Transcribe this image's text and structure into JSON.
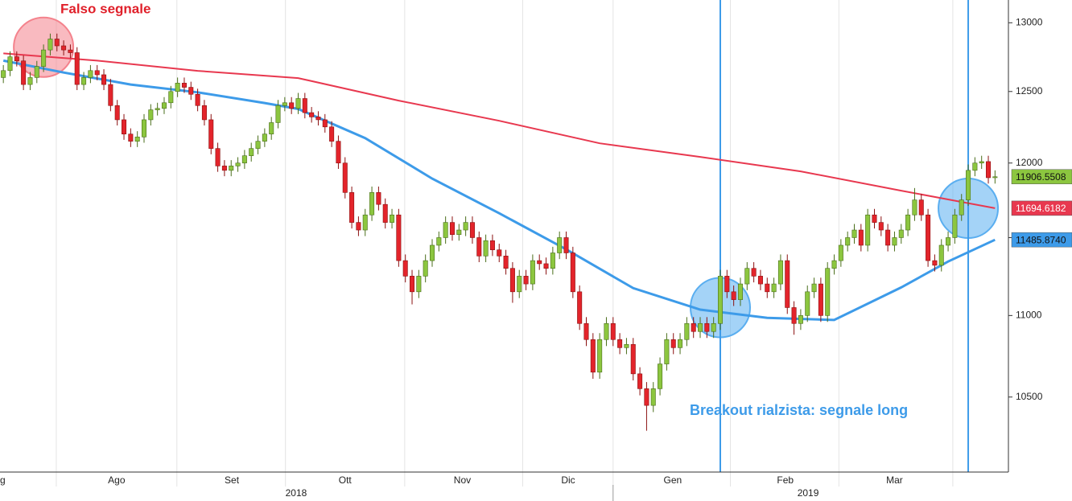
{
  "chart_data": {
    "type": "candlestick",
    "log_scale": true,
    "ylim": [
      10060,
      13170
    ],
    "yticks": [
      10500,
      11000,
      11500,
      12000,
      12500,
      13000
    ],
    "xlim": [
      0.5,
      151
    ],
    "xticks": [
      {
        "value": 17.9,
        "label": "Ago"
      },
      {
        "value": 35.1,
        "label": "Set"
      },
      {
        "value": 52,
        "label": "Ott"
      },
      {
        "value": 69.5,
        "label": "Nov"
      },
      {
        "value": 85.3,
        "label": "Dic"
      },
      {
        "value": 100.9,
        "label": "Gen"
      },
      {
        "value": 117.7,
        "label": "Feb"
      },
      {
        "value": 134,
        "label": "Mar"
      }
    ],
    "xgrid": [
      8.9,
      26.9,
      43.1,
      60.9,
      78.5,
      92,
      109.5,
      125.7,
      142.7
    ],
    "year_ticks": [
      {
        "value": 44.7,
        "label": "2018"
      },
      {
        "value": 121.1,
        "label": "2019"
      }
    ],
    "year_divider": 92,
    "x_edge_label": "g",
    "up_color": "#8cc63f",
    "down_color": "#e3242b",
    "ohlc": [
      [
        12600,
        12690,
        12560,
        12650
      ],
      [
        12650,
        12790,
        12610,
        12750
      ],
      [
        12750,
        12790,
        12680,
        12720
      ],
      [
        12720,
        12760,
        12510,
        12550
      ],
      [
        12550,
        12640,
        12510,
        12600
      ],
      [
        12600,
        12720,
        12560,
        12680
      ],
      [
        12680,
        12840,
        12640,
        12800
      ],
      [
        12800,
        12920,
        12760,
        12880
      ],
      [
        12880,
        12920,
        12790,
        12830
      ],
      [
        12830,
        12870,
        12760,
        12800
      ],
      [
        12800,
        12840,
        12740,
        12780
      ],
      [
        12780,
        12820,
        12510,
        12550
      ],
      [
        12550,
        12640,
        12510,
        12600
      ],
      [
        12600,
        12690,
        12560,
        12650
      ],
      [
        12650,
        12690,
        12580,
        12620
      ],
      [
        12620,
        12660,
        12510,
        12550
      ],
      [
        12550,
        12590,
        12360,
        12400
      ],
      [
        12400,
        12440,
        12260,
        12300
      ],
      [
        12300,
        12340,
        12160,
        12200
      ],
      [
        12200,
        12240,
        12110,
        12150
      ],
      [
        12150,
        12220,
        12110,
        12180
      ],
      [
        12180,
        12340,
        12140,
        12300
      ],
      [
        12300,
        12410,
        12260,
        12370
      ],
      [
        12370,
        12420,
        12330,
        12380
      ],
      [
        12380,
        12460,
        12340,
        12420
      ],
      [
        12420,
        12540,
        12380,
        12500
      ],
      [
        12500,
        12600,
        12460,
        12560
      ],
      [
        12560,
        12600,
        12490,
        12530
      ],
      [
        12530,
        12570,
        12440,
        12480
      ],
      [
        12480,
        12520,
        12360,
        12400
      ],
      [
        12400,
        12440,
        12260,
        12300
      ],
      [
        12300,
        12340,
        12060,
        12100
      ],
      [
        12100,
        12140,
        11940,
        11980
      ],
      [
        11980,
        12020,
        11910,
        11950
      ],
      [
        11950,
        12020,
        11910,
        11980
      ],
      [
        11980,
        12040,
        11940,
        12000
      ],
      [
        12000,
        12090,
        11960,
        12050
      ],
      [
        12050,
        12140,
        12010,
        12100
      ],
      [
        12100,
        12190,
        12060,
        12150
      ],
      [
        12150,
        12240,
        12110,
        12200
      ],
      [
        12200,
        12320,
        12160,
        12280
      ],
      [
        12280,
        12440,
        12240,
        12400
      ],
      [
        12400,
        12460,
        12360,
        12420
      ],
      [
        12420,
        12460,
        12340,
        12380
      ],
      [
        12380,
        12490,
        12340,
        12450
      ],
      [
        12450,
        12490,
        12310,
        12350
      ],
      [
        12350,
        12390,
        12280,
        12320
      ],
      [
        12320,
        12360,
        12260,
        12300
      ],
      [
        12300,
        12340,
        12210,
        12250
      ],
      [
        12250,
        12290,
        12110,
        12150
      ],
      [
        12150,
        12190,
        11960,
        12000
      ],
      [
        12000,
        12040,
        11760,
        11800
      ],
      [
        11800,
        11840,
        11560,
        11600
      ],
      [
        11600,
        11640,
        11510,
        11550
      ],
      [
        11550,
        11690,
        11510,
        11650
      ],
      [
        11650,
        11840,
        11610,
        11800
      ],
      [
        11800,
        11840,
        11680,
        11720
      ],
      [
        11720,
        11760,
        11560,
        11600
      ],
      [
        11600,
        11690,
        11560,
        11650
      ],
      [
        11650,
        11690,
        11310,
        11350
      ],
      [
        11350,
        11390,
        11210,
        11250
      ],
      [
        11250,
        11290,
        11070,
        11150
      ],
      [
        11150,
        11290,
        11110,
        11250
      ],
      [
        11250,
        11390,
        11210,
        11350
      ],
      [
        11350,
        11490,
        11310,
        11450
      ],
      [
        11450,
        11540,
        11410,
        11500
      ],
      [
        11500,
        11640,
        11460,
        11600
      ],
      [
        11600,
        11640,
        11480,
        11520
      ],
      [
        11520,
        11590,
        11480,
        11550
      ],
      [
        11550,
        11640,
        11510,
        11600
      ],
      [
        11600,
        11640,
        11460,
        11500
      ],
      [
        11500,
        11540,
        11340,
        11380
      ],
      [
        11380,
        11520,
        11340,
        11480
      ],
      [
        11480,
        11520,
        11380,
        11420
      ],
      [
        11420,
        11460,
        11340,
        11380
      ],
      [
        11380,
        11420,
        11260,
        11300
      ],
      [
        11300,
        11340,
        11080,
        11150
      ],
      [
        11150,
        11290,
        11110,
        11250
      ],
      [
        11250,
        11290,
        11160,
        11200
      ],
      [
        11200,
        11390,
        11160,
        11350
      ],
      [
        11350,
        11390,
        11290,
        11330
      ],
      [
        11330,
        11370,
        11260,
        11300
      ],
      [
        11300,
        11440,
        11260,
        11400
      ],
      [
        11400,
        11540,
        11360,
        11500
      ],
      [
        11500,
        11540,
        11360,
        11400
      ],
      [
        11400,
        11440,
        11110,
        11150
      ],
      [
        11150,
        11190,
        10910,
        10950
      ],
      [
        10950,
        10990,
        10810,
        10850
      ],
      [
        10850,
        10890,
        10610,
        10650
      ],
      [
        10650,
        10890,
        10610,
        10850
      ],
      [
        10850,
        10990,
        10810,
        10950
      ],
      [
        10950,
        10990,
        10810,
        10850
      ],
      [
        10850,
        10890,
        10760,
        10800
      ],
      [
        10800,
        10860,
        10760,
        10820
      ],
      [
        10820,
        10860,
        10600,
        10640
      ],
      [
        10640,
        10680,
        10510,
        10550
      ],
      [
        10550,
        10590,
        10300,
        10450
      ],
      [
        10450,
        10590,
        10410,
        10550
      ],
      [
        10550,
        10740,
        10510,
        10700
      ],
      [
        10700,
        10890,
        10660,
        10850
      ],
      [
        10850,
        10890,
        10760,
        10800
      ],
      [
        10800,
        10890,
        10760,
        10850
      ],
      [
        10850,
        10990,
        10810,
        10950
      ],
      [
        10950,
        10990,
        10860,
        10900
      ],
      [
        10900,
        10990,
        10860,
        10950
      ],
      [
        10950,
        10990,
        10860,
        10900
      ],
      [
        10900,
        10990,
        10860,
        10950
      ],
      [
        10950,
        11290,
        10910,
        11250
      ],
      [
        11250,
        11290,
        11110,
        11150
      ],
      [
        11150,
        11190,
        11060,
        11100
      ],
      [
        11100,
        11240,
        11060,
        11200
      ],
      [
        11200,
        11340,
        11160,
        11300
      ],
      [
        11300,
        11340,
        11210,
        11250
      ],
      [
        11250,
        11290,
        11160,
        11200
      ],
      [
        11200,
        11240,
        11110,
        11150
      ],
      [
        11150,
        11240,
        11110,
        11200
      ],
      [
        11200,
        11390,
        11160,
        11350
      ],
      [
        11350,
        11390,
        11010,
        11050
      ],
      [
        11050,
        11090,
        10880,
        10950
      ],
      [
        10950,
        11040,
        10910,
        11000
      ],
      [
        11000,
        11190,
        10960,
        11150
      ],
      [
        11150,
        11240,
        11110,
        11200
      ],
      [
        11200,
        11240,
        10960,
        11000
      ],
      [
        11000,
        11340,
        10960,
        11300
      ],
      [
        11300,
        11390,
        11260,
        11350
      ],
      [
        11350,
        11490,
        11310,
        11450
      ],
      [
        11450,
        11540,
        11410,
        11500
      ],
      [
        11500,
        11590,
        11460,
        11550
      ],
      [
        11550,
        11590,
        11410,
        11450
      ],
      [
        11450,
        11690,
        11410,
        11650
      ],
      [
        11650,
        11690,
        11560,
        11600
      ],
      [
        11600,
        11640,
        11510,
        11550
      ],
      [
        11550,
        11590,
        11410,
        11450
      ],
      [
        11450,
        11540,
        11410,
        11500
      ],
      [
        11500,
        11590,
        11460,
        11550
      ],
      [
        11550,
        11690,
        11510,
        11650
      ],
      [
        11650,
        11830,
        11610,
        11750
      ],
      [
        11750,
        11790,
        11610,
        11650
      ],
      [
        11650,
        11690,
        11310,
        11350
      ],
      [
        11350,
        11390,
        11280,
        11320
      ],
      [
        11320,
        11490,
        11280,
        11450
      ],
      [
        11450,
        11540,
        11410,
        11500
      ],
      [
        11500,
        11690,
        11460,
        11650
      ],
      [
        11650,
        11790,
        11610,
        11750
      ],
      [
        11750,
        11990,
        11710,
        11950
      ],
      [
        11950,
        12040,
        11910,
        12000
      ],
      [
        12000,
        12050,
        11960,
        12010
      ],
      [
        12010,
        12050,
        11860,
        11900
      ],
      [
        11900,
        11950,
        11860,
        11906.5508
      ]
    ],
    "last_label": {
      "value": 11906.5508,
      "label": "11906.5508",
      "color": "#8cc63f",
      "text_color": "#111"
    },
    "series": [
      {
        "color": "#e8384f",
        "x": [
          1,
          15,
          30,
          45,
          60,
          75,
          90,
          105,
          120,
          135,
          149
        ],
        "values": [
          12775,
          12722,
          12648,
          12596,
          12435,
          12293,
          12136,
          12042,
          11943,
          11812,
          11694.6182
        ],
        "end_label": {
          "value": 11694.6182,
          "label": "11694.6182",
          "color": "#e8384f",
          "text_color": "#fff"
        }
      },
      {
        "color": "#3d9be9",
        "x": [
          1,
          10,
          20,
          30,
          40,
          45,
          55,
          65,
          75,
          85,
          95,
          105,
          115,
          125,
          135,
          142,
          149
        ],
        "values": [
          12722,
          12636,
          12550,
          12494,
          12418,
          12376,
          12172,
          11894,
          11661,
          11423,
          11173,
          11037,
          10985,
          10972,
          11178,
          11344,
          11485.874
        ],
        "end_label": {
          "value": 11485.874,
          "label": "11485.8740",
          "color": "#3d9be9",
          "text_color": "#111"
        }
      }
    ],
    "vlines": [
      108,
      145
    ],
    "vline_color": "#3d9be9",
    "highlights": [
      {
        "x": 7,
        "y": 12820,
        "color": "#f4828c"
      },
      {
        "x": 108,
        "y": 11050,
        "color": "#5aaef0"
      },
      {
        "x": 145,
        "y": 11694,
        "color": "#5aaef0"
      }
    ],
    "annotations": [
      {
        "text": "Falso segnale",
        "color": "#e0202a"
      },
      {
        "text": "Breakout rialzista: segnale long",
        "color": "#3d9be9"
      }
    ]
  }
}
